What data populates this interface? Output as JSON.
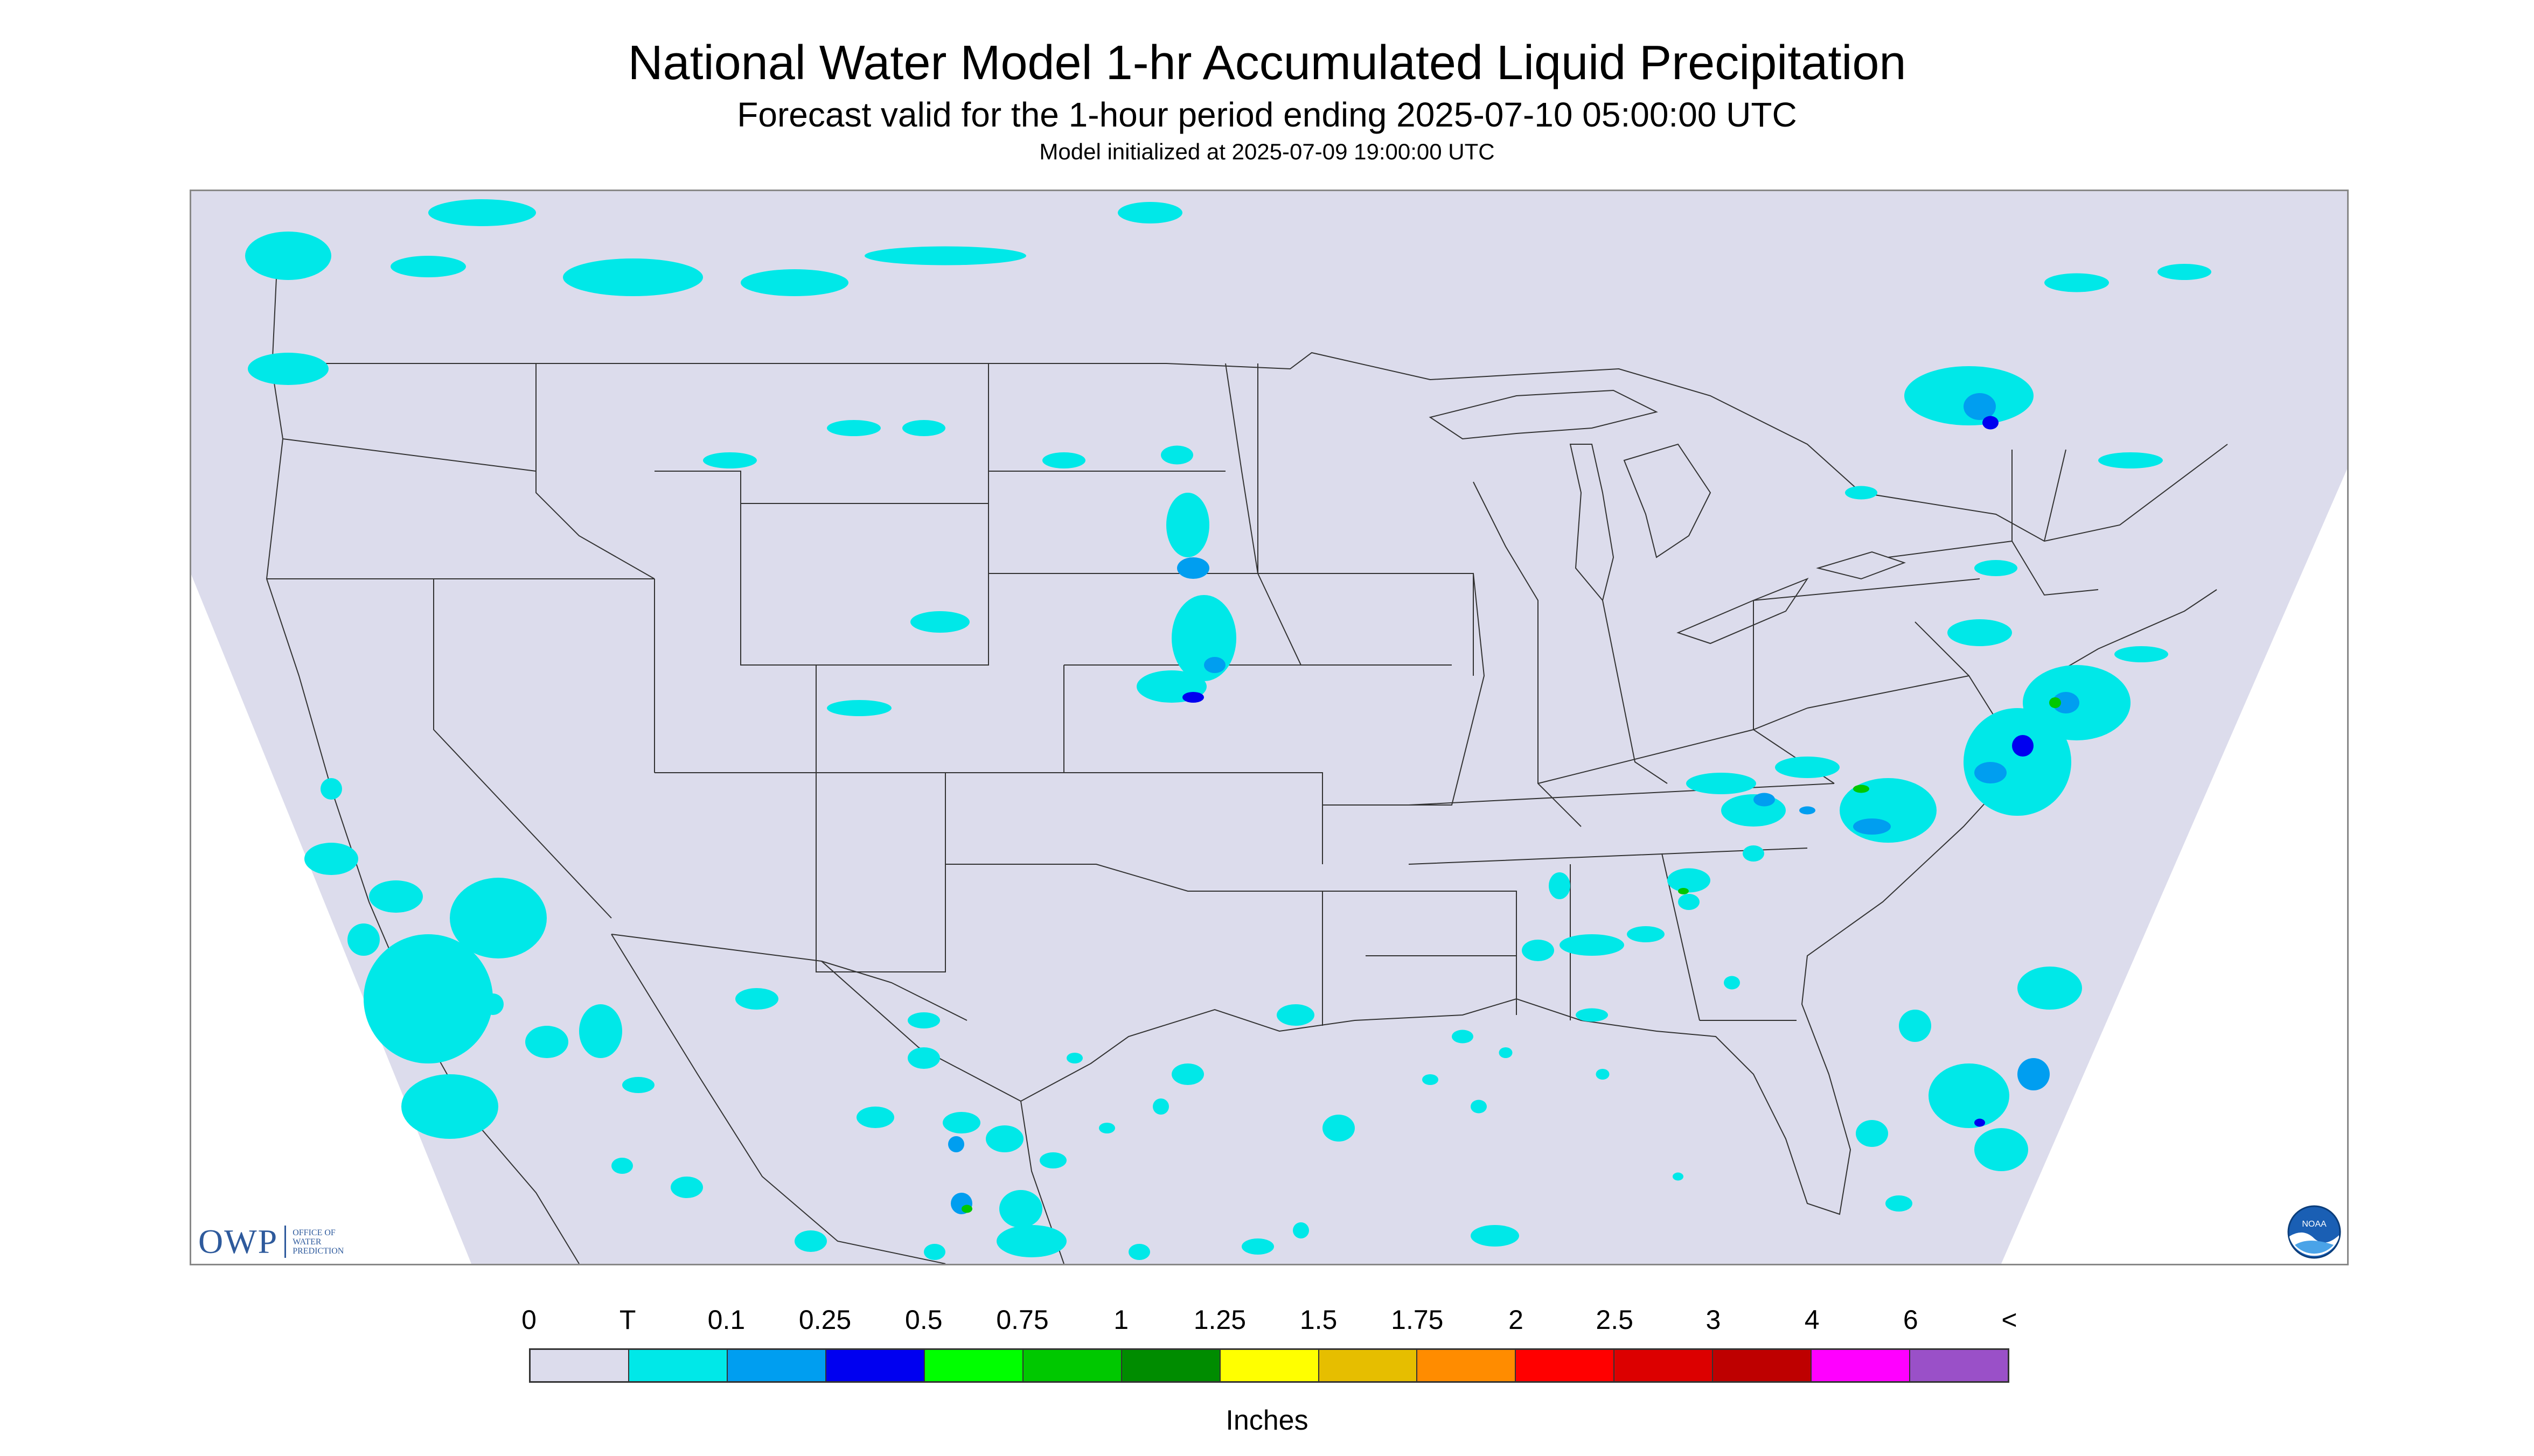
{
  "header": {
    "title": "National Water Model 1-hr Accumulated Liquid Precipitation",
    "subtitle": "Forecast valid for the 1-hour period ending 2025-07-10 05:00:00 UTC",
    "init_line": "Model initialized at 2025-07-09 19:00:00 UTC"
  },
  "map": {
    "background_color": "#dcdcec",
    "outside_color": "#ffffff",
    "border_color": "#333333"
  },
  "logos": {
    "owp_letters": "OWP",
    "owp_text": "OFFICE OF WATER PREDICTION",
    "noaa_text": "NOAA"
  },
  "legend": {
    "labels": [
      "0",
      "T",
      "0.1",
      "0.25",
      "0.5",
      "0.75",
      "1",
      "1.25",
      "1.5",
      "1.75",
      "2",
      "2.5",
      "3",
      "4",
      "6",
      "<"
    ],
    "colors": [
      "#dcdcec",
      "#00e8e8",
      "#009ef0",
      "#0000f0",
      "#00ff00",
      "#00c800",
      "#008c00",
      "#ffff00",
      "#e6be00",
      "#ff8c00",
      "#ff0000",
      "#dc0000",
      "#be0000",
      "#ff00ff",
      "#9a50c8"
    ],
    "units": "Inches"
  }
}
